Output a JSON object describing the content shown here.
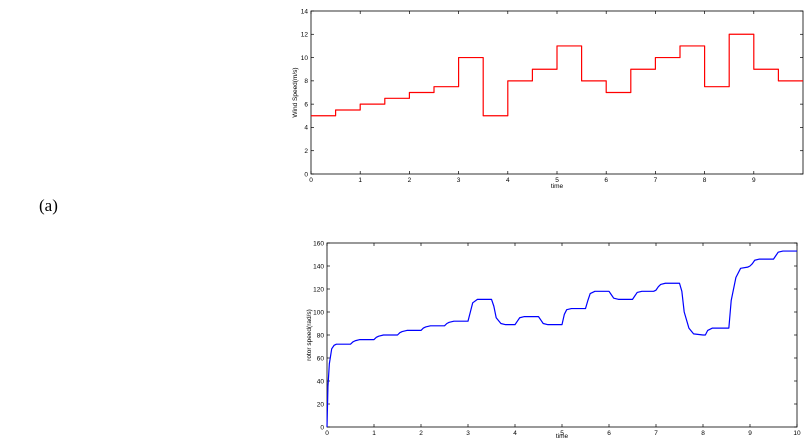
{
  "figure_label": "(a)",
  "chart_data": [
    {
      "type": "line",
      "line_style": "step",
      "color": "#ff0000",
      "xlabel": "time",
      "ylabel": "Wind Speed(m/s)",
      "xlim": [
        0,
        10
      ],
      "ylim": [
        0,
        14
      ],
      "xticks": [
        0,
        1,
        2,
        3,
        4,
        5,
        6,
        7,
        8,
        9
      ],
      "yticks": [
        0,
        2,
        4,
        6,
        8,
        10,
        12,
        14
      ],
      "grid": false,
      "series": [
        {
          "x": [
            0,
            0.5,
            1,
            1.5,
            2,
            2.5,
            3,
            3.5,
            4,
            4.5,
            5,
            5.5,
            6,
            6.5,
            7,
            7.5,
            8,
            8.5,
            9,
            9.5,
            10
          ],
          "y": [
            5,
            5.5,
            6,
            6.5,
            7,
            7.5,
            10,
            5,
            8,
            9,
            11,
            8,
            7,
            9,
            10,
            11,
            7.5,
            12,
            9,
            8,
            8
          ]
        }
      ]
    },
    {
      "type": "line",
      "color": "#0000ff",
      "xlabel": "time",
      "ylabel": "rotor speed(rad/s)",
      "xlim": [
        0,
        10
      ],
      "ylim": [
        0,
        160
      ],
      "xticks": [
        0,
        1,
        2,
        3,
        4,
        5,
        6,
        7,
        8,
        9,
        10
      ],
      "yticks": [
        0,
        20,
        40,
        60,
        80,
        100,
        120,
        140,
        160
      ],
      "grid": false,
      "series": [
        {
          "x": [
            0,
            0.02,
            0.05,
            0.1,
            0.15,
            0.2,
            0.3,
            0.4,
            0.5,
            0.55,
            0.6,
            0.7,
            0.9,
            1.0,
            1.05,
            1.1,
            1.2,
            1.45,
            1.5,
            1.55,
            1.6,
            1.7,
            1.95,
            2.0,
            2.05,
            2.1,
            2.2,
            2.45,
            2.5,
            2.55,
            2.6,
            2.7,
            2.95,
            3.0,
            3.05,
            3.1,
            3.2,
            3.5,
            3.55,
            3.6,
            3.7,
            3.8,
            4.0,
            4.05,
            4.1,
            4.2,
            4.5,
            4.55,
            4.6,
            4.7,
            4.95,
            5.0,
            5.05,
            5.1,
            5.2,
            5.5,
            5.55,
            5.6,
            5.7,
            6.0,
            6.05,
            6.1,
            6.2,
            6.5,
            6.55,
            6.6,
            6.7,
            6.95,
            7.0,
            7.05,
            7.1,
            7.2,
            7.5,
            7.55,
            7.6,
            7.7,
            7.8,
            8.0,
            8.05,
            8.1,
            8.2,
            8.5,
            8.55,
            8.6,
            8.7,
            8.8,
            8.95,
            9.0,
            9.05,
            9.1,
            9.2,
            9.45,
            9.5,
            9.55,
            9.6,
            9.7,
            10.0
          ],
          "y": [
            0,
            35,
            55,
            68,
            71,
            72,
            72,
            72,
            72,
            74,
            75,
            76,
            76,
            76,
            78,
            79,
            80,
            80,
            80,
            82,
            83,
            84,
            84,
            84,
            86,
            87,
            88,
            88,
            88,
            90,
            91,
            92,
            92,
            92,
            100,
            108,
            111,
            111,
            105,
            95,
            90,
            89,
            89,
            92,
            95,
            96,
            96,
            93,
            90,
            89,
            89,
            89,
            98,
            102,
            103,
            103,
            110,
            116,
            118,
            118,
            115,
            112,
            111,
            111,
            114,
            117,
            118,
            118,
            119,
            122,
            124,
            125,
            125,
            118,
            100,
            86,
            81,
            80,
            80,
            84,
            86,
            86,
            86,
            110,
            130,
            138,
            139,
            140,
            142,
            145,
            146,
            146,
            146,
            149,
            152,
            153,
            153
          ]
        }
      ]
    }
  ]
}
